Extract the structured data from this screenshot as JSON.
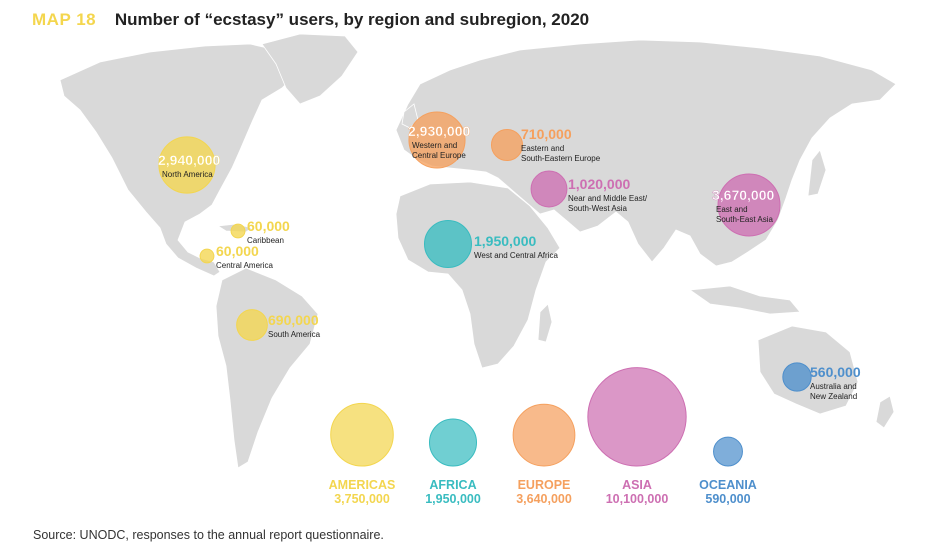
{
  "header": {
    "map_label": "MAP 18",
    "title": "Number of “ecstasy” users, by region and subregion, 2020"
  },
  "source": "Source: UNODC, responses to the annual report questionnaire.",
  "colors": {
    "americas": "#f3d64f",
    "africa": "#39bcc0",
    "europe": "#f5a05e",
    "asia": "#cd6fb2",
    "oceania": "#4e8fcc",
    "land": "#d9d9d9",
    "water": "#ffffff"
  },
  "subregions": [
    {
      "name": "North America",
      "value": "2,940,000",
      "users": 2940000,
      "group": "americas"
    },
    {
      "name": "Caribbean",
      "value": "60,000",
      "users": 60000,
      "group": "americas"
    },
    {
      "name": "Central America",
      "value": "60,000",
      "users": 60000,
      "group": "americas"
    },
    {
      "name": "South America",
      "value": "690,000",
      "users": 690000,
      "group": "americas"
    },
    {
      "name": "Western and Central Europe",
      "value": "2,930,000",
      "users": 2930000,
      "group": "europe"
    },
    {
      "name": "Eastern and South-Eastern Europe",
      "value": "710,000",
      "users": 710000,
      "group": "europe"
    },
    {
      "name": "Near and Middle East/ South-West Asia",
      "value": "1,020,000",
      "users": 1020000,
      "group": "asia"
    },
    {
      "name": "West and Central Africa",
      "value": "1,950,000",
      "users": 1950000,
      "group": "africa"
    },
    {
      "name": "East and South-East Asia",
      "value": "3,670,000",
      "users": 3670000,
      "group": "asia"
    },
    {
      "name": "Australia and New Zealand",
      "value": "560,000",
      "users": 560000,
      "group": "oceania"
    }
  ],
  "regions": [
    {
      "name": "AMERICAS",
      "value": "3,750,000",
      "users": 3750000,
      "group": "americas"
    },
    {
      "name": "AFRICA",
      "value": "1,950,000",
      "users": 1950000,
      "group": "africa"
    },
    {
      "name": "EUROPE",
      "value": "3,640,000",
      "users": 3640000,
      "group": "europe"
    },
    {
      "name": "ASIA",
      "value": "10,100,000",
      "users": 10100000,
      "group": "asia"
    },
    {
      "name": "OCEANIA",
      "value": "590,000",
      "users": 590000,
      "group": "oceania"
    }
  ]
}
